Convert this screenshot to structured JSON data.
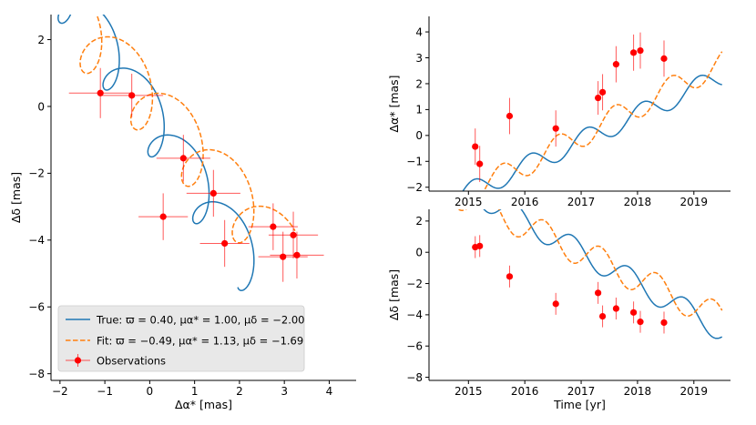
{
  "chart_data": [
    {
      "id": "left",
      "type": "scatter",
      "title": "",
      "xlabel": "Δα* [mas]",
      "ylabel": "Δδ [mas]",
      "xlim": [
        -2.2,
        4.6
      ],
      "ylim": [
        -8.2,
        2.75
      ],
      "xticks": [
        -2,
        -1,
        0,
        1,
        2,
        3,
        4
      ],
      "xtick_labels": [
        "−2",
        "−1",
        "0",
        "1",
        "2",
        "3",
        "4"
      ],
      "yticks": [
        2,
        0,
        -2,
        -4,
        -6,
        -8
      ],
      "ytick_labels": [
        "2",
        "0",
        "−2",
        "−4",
        "−6",
        "−8"
      ],
      "grid": false,
      "legend_position": "bottom-left",
      "legend": {
        "true_label": "True: ϖ = 0.40, μα* = 1.00, μδ = −2.00",
        "fit_label": "Fit: ϖ = −0.49, μα* = 1.13, μδ = −1.69",
        "obs_label": "Observations"
      },
      "series": [
        {
          "name": "True",
          "style": "solid",
          "color": "#1f77b4",
          "ra0": -0.2,
          "dec0": 0.0,
          "pmra": 1.0,
          "pmdec": -2.0,
          "plx": 0.4,
          "phase": 1.0
        },
        {
          "name": "Fit",
          "style": "dashed",
          "color": "#ff7f0e",
          "ra0": 0.0,
          "dec0": 0.0,
          "pmra": 1.13,
          "pmdec": -1.69,
          "plx": -0.49,
          "phase": 1.0
        }
      ],
      "observations": {
        "name": "Observations",
        "color": "#ff0000",
        "x": [
          -1.1,
          -0.4,
          0.75,
          0.3,
          1.42,
          1.67,
          2.75,
          2.97,
          3.2,
          3.28
        ],
        "y": [
          0.4,
          0.33,
          -1.55,
          -3.3,
          -2.6,
          -4.1,
          -3.6,
          -4.5,
          -3.85,
          -4.45
        ],
        "xerr": [
          0.7,
          0.7,
          0.6,
          0.55,
          0.6,
          0.55,
          0.55,
          0.55,
          0.55,
          0.6
        ],
        "yerr": [
          0.75,
          0.65,
          0.7,
          0.7,
          0.7,
          0.7,
          0.7,
          0.75,
          0.7,
          0.7
        ]
      }
    },
    {
      "id": "top-right",
      "type": "line",
      "xlabel": "",
      "ylabel": "Δα* [mas]",
      "xlim": [
        2014.3,
        2019.65
      ],
      "ylim": [
        -2.15,
        4.6
      ],
      "xticks": [
        2015,
        2016,
        2017,
        2018,
        2019
      ],
      "xtick_labels": [
        "2015",
        "2016",
        "2017",
        "2018",
        "2019"
      ],
      "yticks": [
        4,
        3,
        2,
        1,
        0,
        -1,
        -2
      ],
      "ytick_labels": [
        "4",
        "3",
        "2",
        "1",
        "0",
        "−1",
        "−2"
      ],
      "x_range": [
        2014.5,
        2019.5
      ],
      "series": [
        {
          "name": "True",
          "style": "solid",
          "color": "#1f77b4",
          "offset": -0.2,
          "rate": 1.0,
          "amp": 0.4,
          "phase": 1.0
        },
        {
          "name": "Fit",
          "style": "dashed",
          "color": "#ff7f0e",
          "offset": 0.0,
          "rate": 1.13,
          "amp": -0.49,
          "phase": 1.0
        }
      ],
      "observations": {
        "name": "Observations",
        "color": "#ff0000",
        "t": [
          2015.12,
          2015.2,
          2015.73,
          2016.55,
          2017.3,
          2017.38,
          2017.62,
          2017.93,
          2018.05,
          2018.47
        ],
        "y": [
          -0.43,
          -1.1,
          0.75,
          0.27,
          1.45,
          1.67,
          2.75,
          3.2,
          3.28,
          2.97
        ],
        "yerr": [
          0.7,
          0.7,
          0.7,
          0.7,
          0.65,
          0.7,
          0.7,
          0.7,
          0.7,
          0.7
        ]
      }
    },
    {
      "id": "bottom-right",
      "type": "line",
      "xlabel": "Time [yr]",
      "ylabel": "Δδ [mas]",
      "xlim": [
        2014.3,
        2019.65
      ],
      "ylim": [
        -8.2,
        2.75
      ],
      "xticks": [
        2015,
        2016,
        2017,
        2018,
        2019
      ],
      "xtick_labels": [
        "2015",
        "2016",
        "2017",
        "2018",
        "2019"
      ],
      "yticks": [
        2,
        0,
        -2,
        -4,
        -6,
        -8
      ],
      "ytick_labels": [
        "2",
        "0",
        "−2",
        "−4",
        "−6",
        "−8"
      ],
      "x_range": [
        2014.5,
        2019.5
      ],
      "series": [
        {
          "name": "True",
          "style": "solid",
          "color": "#1f77b4",
          "offset": 0.0,
          "rate": -2.0,
          "amp": 0.4,
          "phase": 1.0
        },
        {
          "name": "Fit",
          "style": "dashed",
          "color": "#ff7f0e",
          "offset": 0.0,
          "rate": -1.69,
          "amp": -0.49,
          "phase": 1.0
        }
      ],
      "observations": {
        "name": "Observations",
        "color": "#ff0000",
        "t": [
          2015.12,
          2015.2,
          2015.73,
          2016.55,
          2017.3,
          2017.38,
          2017.62,
          2017.93,
          2018.05,
          2018.47
        ],
        "y": [
          0.33,
          0.4,
          -1.55,
          -3.3,
          -2.6,
          -4.1,
          -3.6,
          -3.85,
          -4.45,
          -4.5
        ],
        "yerr": [
          0.7,
          0.7,
          0.7,
          0.7,
          0.7,
          0.7,
          0.7,
          0.7,
          0.7,
          0.7
        ]
      }
    }
  ]
}
